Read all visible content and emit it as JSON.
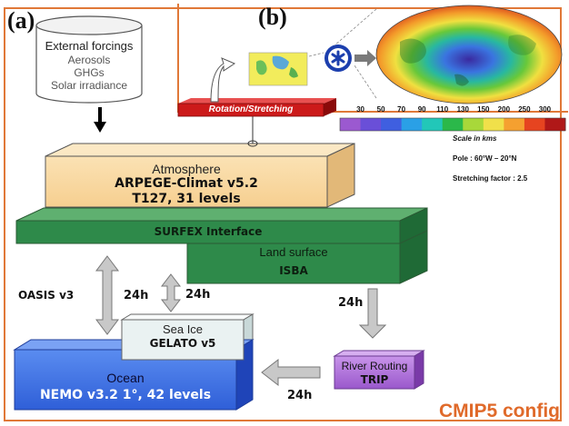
{
  "panel_labels": {
    "a": "(a)",
    "b": "(b)"
  },
  "external_forcings": {
    "title": "External forcings",
    "items": [
      "Aerosols",
      "GHGs",
      "Solar irradiance"
    ]
  },
  "atmosphere": {
    "title": "Atmosphere",
    "model": "ARPEGE-Climat v5.2",
    "resolution": "T127, 31 levels"
  },
  "surfex": {
    "title": "SURFEX Interface"
  },
  "land": {
    "title": "Land surface",
    "model": "ISBA"
  },
  "sea_ice": {
    "title": "Sea Ice",
    "model": "GELATO v5"
  },
  "ocean": {
    "title": "Ocean",
    "model": "NEMO v3.2 1°, 42 levels"
  },
  "river": {
    "title": "River Routing",
    "model": "TRIP"
  },
  "coupler": {
    "name": "OASIS v3"
  },
  "coupling_periods": {
    "atm_ocean": "24h",
    "atm_seaice": "24h",
    "land_river": "24h",
    "river_ocean": "24h"
  },
  "rotation": {
    "label": "Rotation/Stretching"
  },
  "scale": {
    "ticks": [
      "30",
      "50",
      "70",
      "90",
      "110",
      "130",
      "150",
      "200",
      "250",
      "300"
    ],
    "colors": [
      "#9b59d0",
      "#6a4fd8",
      "#3f5fe0",
      "#2aa0e6",
      "#22c7b8",
      "#2bb84a",
      "#a8d83a",
      "#f0e04a",
      "#f5a030",
      "#e64420",
      "#b01818"
    ],
    "caption": "Scale in kms",
    "pole": "Pole : 60°W – 20°N",
    "stretching": "Stretching factor : 2.5"
  },
  "config_label": "CMIP5 config",
  "colors": {
    "frame": "#e07838",
    "atmosphere": "#f8d8a0",
    "surfex": "#2e8a4a",
    "ocean": "#3b6fe0",
    "river": "#b070d8",
    "rotation": "#cc1a1a",
    "config": "#e06a2a"
  }
}
